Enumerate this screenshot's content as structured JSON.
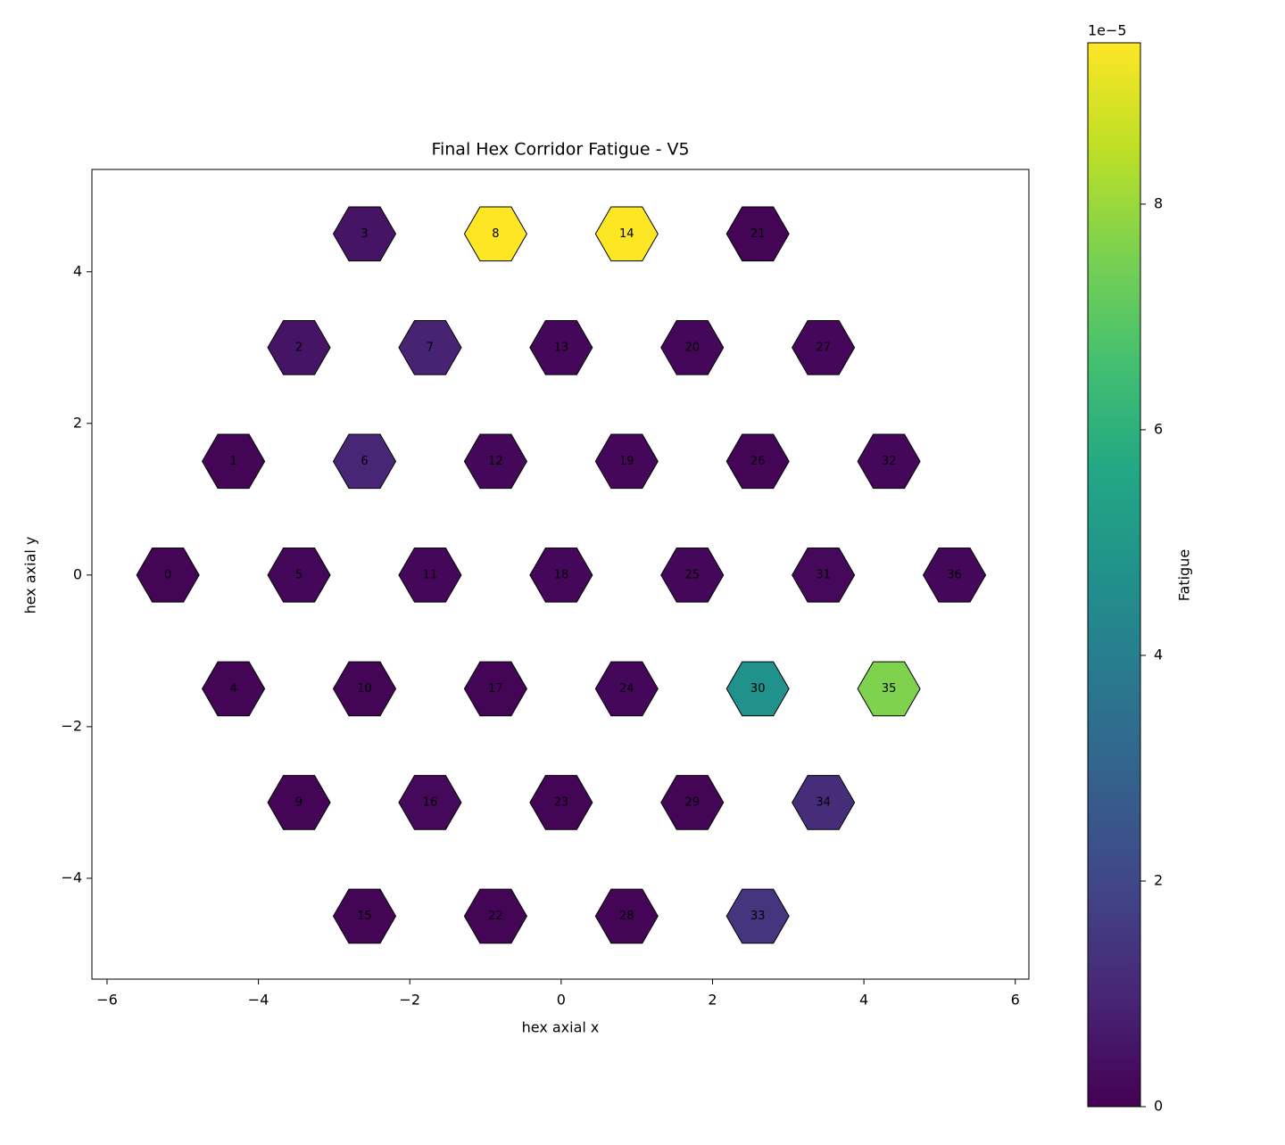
{
  "chart_data": {
    "type": "hexmap",
    "title": "Final Hex Corridor Fatigue - V5",
    "x_label": "hex axial x",
    "y_label": "hex axial y",
    "colorbar_label": "Fatigue",
    "colorbar_offset": "1e−5",
    "colormap": "viridis",
    "xlim": [
      -6.2,
      6.18
    ],
    "ylim": [
      -5.33,
      5.35
    ],
    "clim": [
      0,
      9.43
    ],
    "xticks": [
      {
        "value": -6,
        "label": "−6"
      },
      {
        "value": -4,
        "label": "−4"
      },
      {
        "value": -2,
        "label": "−2"
      },
      0,
      2,
      4,
      6
    ],
    "yticks": [
      {
        "value": -4,
        "label": "−4"
      },
      {
        "value": -2,
        "label": "−2"
      },
      0,
      2,
      4
    ],
    "cticks": [
      0,
      2,
      4,
      6,
      8
    ],
    "labels": [
      0,
      1,
      2,
      3,
      4,
      5,
      6,
      7,
      8,
      9,
      10,
      11,
      12,
      13,
      14,
      15,
      16,
      17,
      18,
      19,
      20,
      21,
      22,
      23,
      24,
      25,
      26,
      27,
      28,
      29,
      30,
      31,
      32,
      33,
      34,
      35,
      36
    ],
    "x": [
      -5.196,
      -4.33,
      -3.464,
      -2.598,
      -4.33,
      -3.464,
      -2.598,
      -1.732,
      -0.866,
      -3.464,
      -2.598,
      -1.732,
      -0.866,
      0,
      0.866,
      -2.598,
      -1.732,
      -0.866,
      0,
      0.866,
      1.732,
      2.598,
      -0.866,
      0,
      0.866,
      1.732,
      2.598,
      3.464,
      0.866,
      1.732,
      2.598,
      3.464,
      4.33,
      2.598,
      3.464,
      4.33,
      5.196
    ],
    "y": [
      0,
      1.5,
      3,
      4.5,
      -1.5,
      0,
      1.5,
      3,
      4.5,
      -3,
      -1.5,
      0,
      1.5,
      3,
      4.5,
      -4.5,
      -3,
      -1.5,
      0,
      1.5,
      3,
      4.5,
      -4.5,
      -3,
      -1.5,
      0,
      1.5,
      3,
      -4.5,
      -3,
      -1.5,
      0,
      1.5,
      -4.5,
      -3,
      -1.5,
      0
    ],
    "values": [
      0.1,
      0.1,
      0.5,
      0.5,
      0.1,
      0.15,
      1.0,
      0.9,
      9.43,
      0.1,
      0.1,
      0.15,
      0.15,
      0.15,
      9.43,
      0.1,
      0.2,
      0.1,
      0.15,
      0.15,
      0.15,
      0.1,
      0.1,
      0.1,
      0.15,
      0.15,
      0.1,
      0.15,
      0.1,
      0.1,
      4.7,
      0.2,
      0.15,
      1.4,
      1.2,
      7.6,
      0.15
    ]
  }
}
